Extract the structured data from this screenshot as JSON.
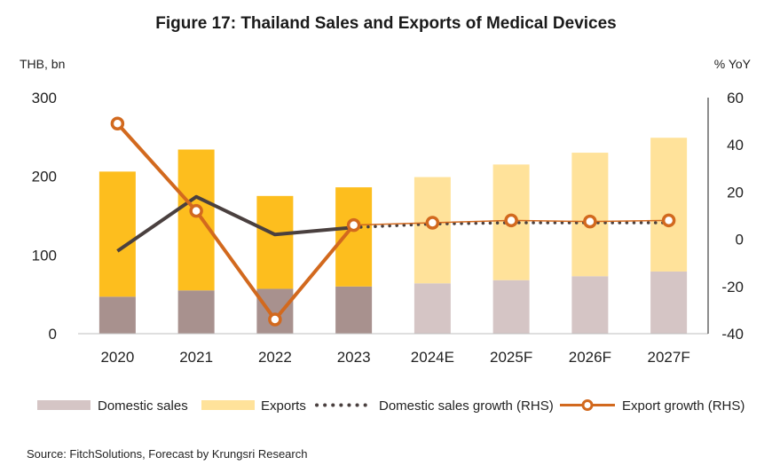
{
  "chart_data": {
    "type": "bar",
    "title": "Figure 17: Thailand Sales and Exports of Medical Devices",
    "y_left_label": "THB, bn",
    "y_right_label": "% YoY",
    "ylim_left": [
      0,
      300
    ],
    "ylim_right": [
      -40,
      60
    ],
    "left_ticks": [
      "0",
      "100",
      "200",
      "300"
    ],
    "right_ticks": [
      "-40",
      "-20",
      "0",
      "20",
      "40",
      "60"
    ],
    "categories": [
      "2020",
      "2021",
      "2022",
      "2023",
      "2024E",
      "2025F",
      "2026F",
      "2027F"
    ],
    "series": [
      {
        "name": "Domestic sales",
        "kind": "stacked-bar",
        "axis": "left",
        "values": [
          47,
          55,
          57,
          60,
          64,
          68,
          73,
          79
        ],
        "colors": [
          "#a8918e",
          "#a8918e",
          "#a8918e",
          "#a8918e",
          "#d5c5c5",
          "#d5c5c5",
          "#d5c5c5",
          "#d5c5c5"
        ]
      },
      {
        "name": "Exports",
        "kind": "stacked-bar",
        "axis": "left",
        "values": [
          159,
          179,
          118,
          126,
          135,
          147,
          157,
          170
        ],
        "colors": [
          "#fdbe1e",
          "#fdbe1e",
          "#fdbe1e",
          "#fdbe1e",
          "#ffe29a",
          "#ffe29a",
          "#ffe29a",
          "#ffe29a"
        ]
      },
      {
        "name": "Domestic sales growth (RHS)",
        "kind": "line",
        "axis": "right",
        "color": "#4a403f",
        "values": [
          -5,
          18,
          2,
          5,
          6.5,
          7,
          7,
          7
        ]
      },
      {
        "name": "Export growth (RHS)",
        "kind": "line",
        "axis": "right",
        "color": "#d2691e",
        "values": [
          49,
          12,
          -34,
          6,
          7,
          8,
          7.5,
          8
        ]
      }
    ],
    "legend_position": "bottom"
  },
  "source": "Source: FitchSolutions, Forecast by Krungsri Research"
}
